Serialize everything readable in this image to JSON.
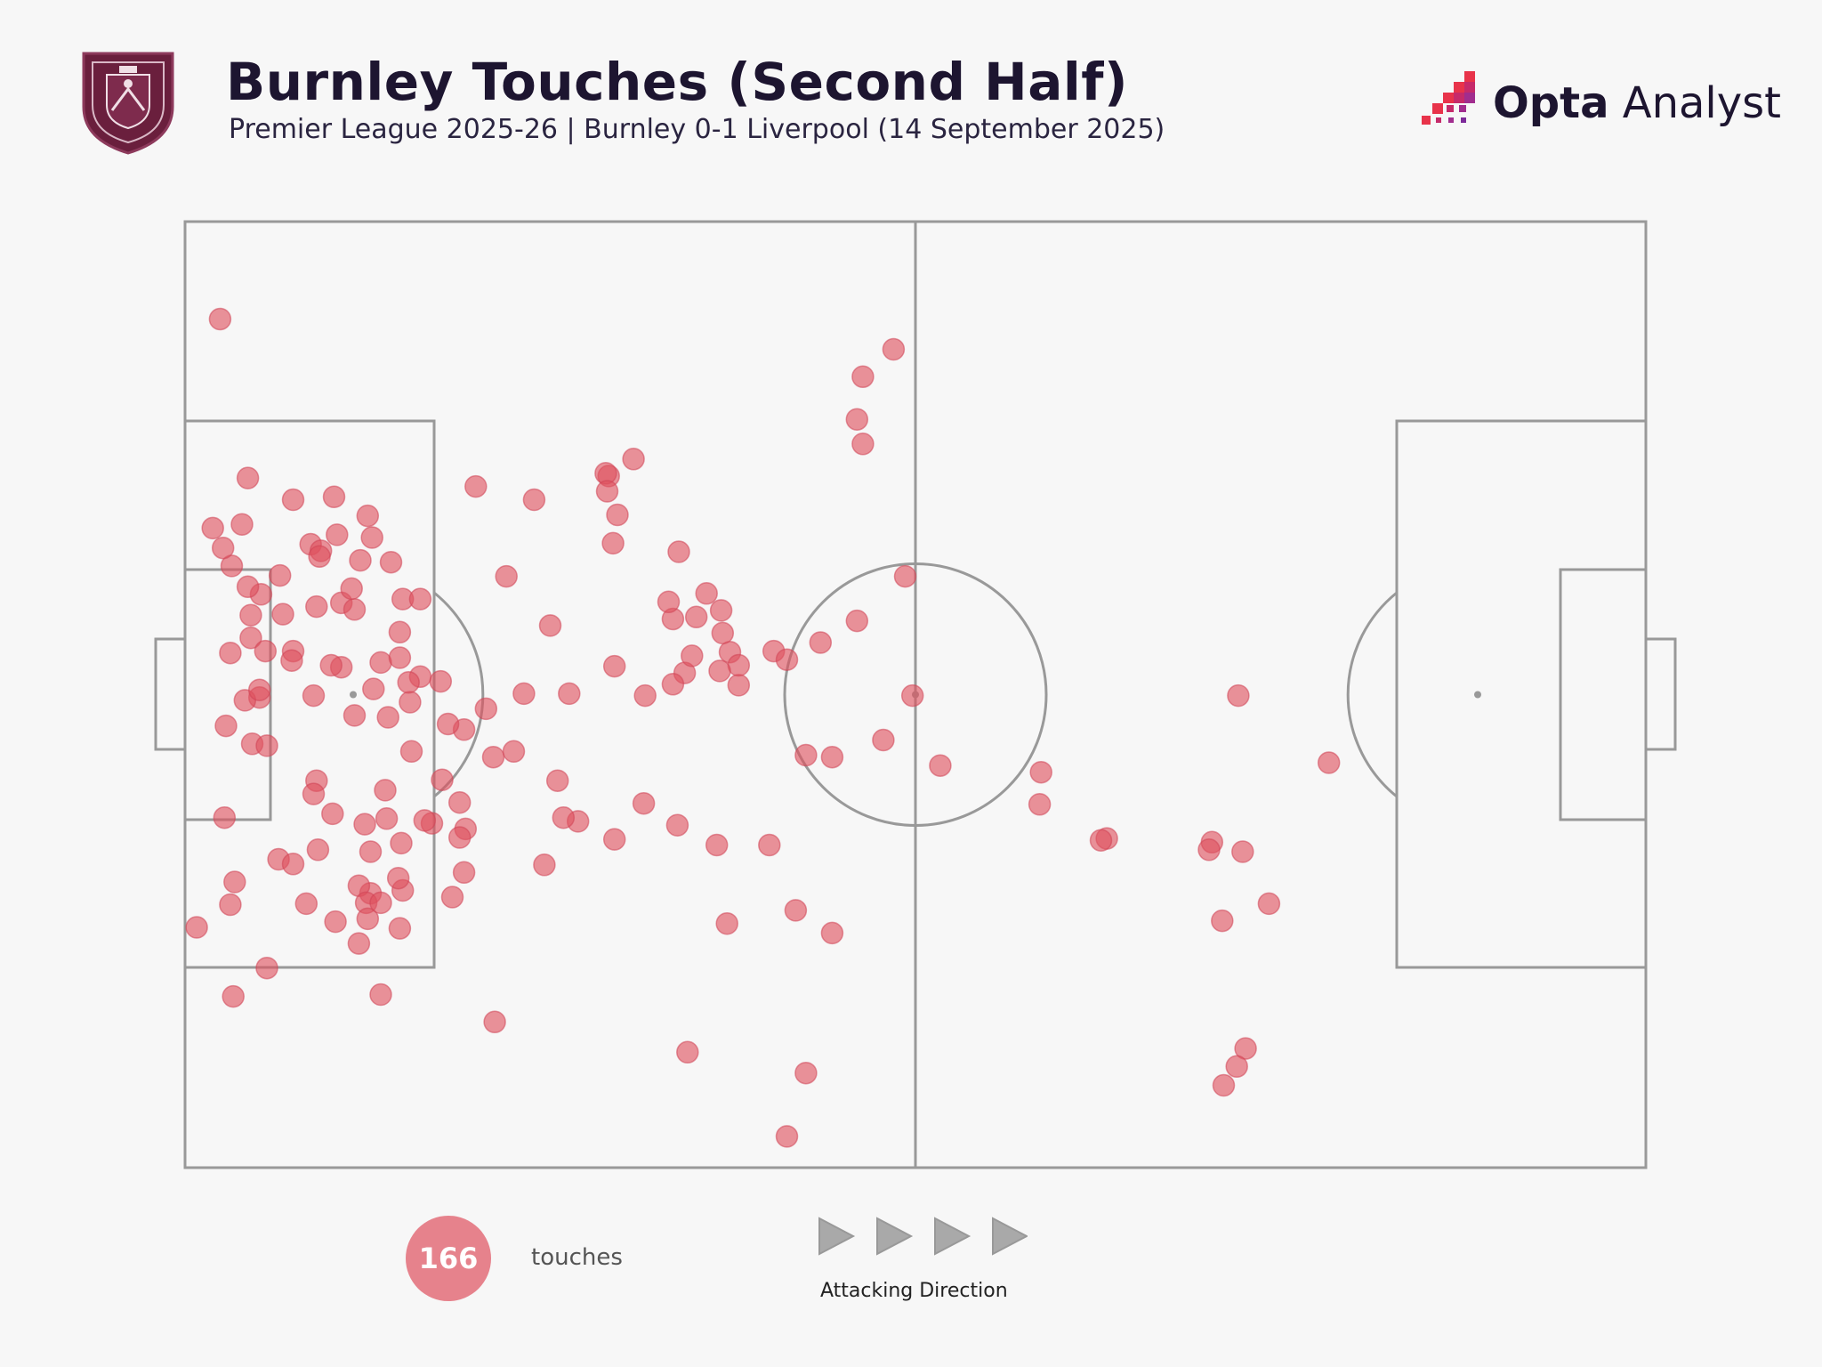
{
  "header": {
    "title": "Burnley Touches (Second Half)",
    "subtitle": "Premier League 2025-26 | Burnley 0-1 Liverpool (14 September 2025)",
    "brand_bold": "Opta",
    "brand_light": " Analyst"
  },
  "icons": {
    "crest": "burnley-crest-icon",
    "brand": "opta-analyst-logo-icon",
    "arrow": "play-triangle-icon"
  },
  "colors": {
    "background": "#f7f7f7",
    "touch_marker": "#de505e",
    "pitch_lines": "#999999",
    "crest": "#6a1f3d",
    "title": "#1d1530"
  },
  "legend": {
    "count": "166",
    "label": "touches",
    "direction_label": "Attacking Direction"
  },
  "chart_data": {
    "type": "scatter",
    "x_range": [
      0,
      100
    ],
    "y_range": [
      0,
      100
    ],
    "x_direction": "attacking left to right",
    "series": [
      {
        "points": [
          [
            2.4,
            89.7
          ],
          [
            0.8,
            25.4
          ],
          [
            13.4,
            18.3
          ],
          [
            21.2,
            15.4
          ],
          [
            41.2,
            3.3
          ],
          [
            42.5,
            10.0
          ],
          [
            34.4,
            12.2
          ],
          [
            24.6,
            32.0
          ],
          [
            40.0,
            34.1
          ],
          [
            37.1,
            25.8
          ],
          [
            36.4,
            34.1
          ],
          [
            41.8,
            27.2
          ],
          [
            44.3,
            24.8
          ],
          [
            29.4,
            34.7
          ],
          [
            26.9,
            36.6
          ],
          [
            33.7,
            36.2
          ],
          [
            31.4,
            38.5
          ],
          [
            44.3,
            43.4
          ],
          [
            33.4,
            58.0
          ],
          [
            35.0,
            58.2
          ],
          [
            35.7,
            60.7
          ],
          [
            36.7,
            58.9
          ],
          [
            37.9,
            51.0
          ],
          [
            34.2,
            52.3
          ],
          [
            34.7,
            54.1
          ],
          [
            37.3,
            54.5
          ],
          [
            33.1,
            59.8
          ],
          [
            33.8,
            65.1
          ],
          [
            29.0,
            73.1
          ],
          [
            28.8,
            73.4
          ],
          [
            29.6,
            69.0
          ],
          [
            28.9,
            71.5
          ],
          [
            30.7,
            74.9
          ],
          [
            46.4,
            76.5
          ],
          [
            46.0,
            79.1
          ],
          [
            46.4,
            83.6
          ],
          [
            48.5,
            86.5
          ],
          [
            25.5,
            40.9
          ],
          [
            25.9,
            37.0
          ],
          [
            22.5,
            44.0
          ],
          [
            23.2,
            50.1
          ],
          [
            26.3,
            50.1
          ],
          [
            20.6,
            48.5
          ],
          [
            19.2,
            35.8
          ],
          [
            16.9,
            36.4
          ],
          [
            14.8,
            34.3
          ],
          [
            13.7,
            39.9
          ],
          [
            17.6,
            41.0
          ],
          [
            18.8,
            38.6
          ],
          [
            21.1,
            43.4
          ],
          [
            19.1,
            46.3
          ],
          [
            18.0,
            46.9
          ],
          [
            15.5,
            44.0
          ],
          [
            16.4,
            36.7
          ],
          [
            18.8,
            34.9
          ],
          [
            12.7,
            29.0
          ],
          [
            11.9,
            29.8
          ],
          [
            12.4,
            28.0
          ],
          [
            12.5,
            26.3
          ],
          [
            10.3,
            26.0
          ],
          [
            11.9,
            23.7
          ],
          [
            14.7,
            25.3
          ],
          [
            14.9,
            29.3
          ],
          [
            5.6,
            21.1
          ],
          [
            3.3,
            18.1
          ],
          [
            3.1,
            27.8
          ],
          [
            3.4,
            30.2
          ],
          [
            2.7,
            37.0
          ],
          [
            2.8,
            46.7
          ],
          [
            4.6,
            44.8
          ],
          [
            6.4,
            32.6
          ],
          [
            8.3,
            27.9
          ],
          [
            7.4,
            32.1
          ],
          [
            5.1,
            49.7
          ],
          [
            5.6,
            44.6
          ],
          [
            4.1,
            49.4
          ],
          [
            4.5,
            56.0
          ],
          [
            5.5,
            54.6
          ],
          [
            7.4,
            54.6
          ],
          [
            8.8,
            49.9
          ],
          [
            3.1,
            54.4
          ],
          [
            5.1,
            50.5
          ],
          [
            7.3,
            53.6
          ],
          [
            4.5,
            58.4
          ],
          [
            6.7,
            58.5
          ],
          [
            5.2,
            60.6
          ],
          [
            4.3,
            61.4
          ],
          [
            3.2,
            63.6
          ],
          [
            6.5,
            62.6
          ],
          [
            9.0,
            59.3
          ],
          [
            10.7,
            59.7
          ],
          [
            11.6,
            59.0
          ],
          [
            14.9,
            60.1
          ],
          [
            13.4,
            53.4
          ],
          [
            12.9,
            50.6
          ],
          [
            14.7,
            56.6
          ],
          [
            16.1,
            51.9
          ],
          [
            13.9,
            47.6
          ],
          [
            15.4,
            49.2
          ],
          [
            15.3,
            51.3
          ],
          [
            14.7,
            53.9
          ],
          [
            17.5,
            51.4
          ],
          [
            10.7,
            52.9
          ],
          [
            11.6,
            47.8
          ],
          [
            10.0,
            53.1
          ],
          [
            9.0,
            40.9
          ],
          [
            8.8,
            39.5
          ],
          [
            9.1,
            33.6
          ],
          [
            10.1,
            37.4
          ],
          [
            12.3,
            36.3
          ],
          [
            13.8,
            36.9
          ],
          [
            12.7,
            33.4
          ],
          [
            13.4,
            28.0
          ],
          [
            14.6,
            30.6
          ],
          [
            18.3,
            28.6
          ],
          [
            19.1,
            31.2
          ],
          [
            29.4,
            53.0
          ],
          [
            33.4,
            51.1
          ],
          [
            31.5,
            49.9
          ],
          [
            36.8,
            56.5
          ],
          [
            37.9,
            53.1
          ],
          [
            36.6,
            52.5
          ],
          [
            25.0,
            57.3
          ],
          [
            16.1,
            60.1
          ],
          [
            22.0,
            62.5
          ],
          [
            29.3,
            66.0
          ],
          [
            23.9,
            70.6
          ],
          [
            19.9,
            72.0
          ],
          [
            14.1,
            64.0
          ],
          [
            12.8,
            66.6
          ],
          [
            12.5,
            68.9
          ],
          [
            10.2,
            70.9
          ],
          [
            8.6,
            65.9
          ],
          [
            3.9,
            68.0
          ],
          [
            1.9,
            67.6
          ],
          [
            4.3,
            72.9
          ],
          [
            7.4,
            70.6
          ],
          [
            9.3,
            65.2
          ],
          [
            9.2,
            64.6
          ],
          [
            2.6,
            65.5
          ],
          [
            10.4,
            66.9
          ],
          [
            12.0,
            64.2
          ],
          [
            11.4,
            61.2
          ],
          [
            43.5,
            55.5
          ],
          [
            42.5,
            43.6
          ],
          [
            47.8,
            45.2
          ],
          [
            51.7,
            42.5
          ],
          [
            46.0,
            57.8
          ],
          [
            49.3,
            62.5
          ],
          [
            40.3,
            54.6
          ],
          [
            41.2,
            53.7
          ],
          [
            49.8,
            49.9
          ],
          [
            58.5,
            38.4
          ],
          [
            58.6,
            41.8
          ],
          [
            63.1,
            34.8
          ],
          [
            70.3,
            34.4
          ],
          [
            70.1,
            33.6
          ],
          [
            72.4,
            33.4
          ],
          [
            62.7,
            34.6
          ],
          [
            74.2,
            27.9
          ],
          [
            71.0,
            26.1
          ],
          [
            72.1,
            49.9
          ],
          [
            78.3,
            42.8
          ],
          [
            72.6,
            12.6
          ],
          [
            72.0,
            10.7
          ],
          [
            71.1,
            8.7
          ]
        ]
      }
    ],
    "grid": false
  }
}
